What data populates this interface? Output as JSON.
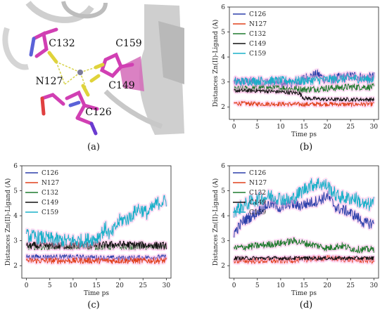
{
  "colors": {
    "C126": "#2b3faa",
    "N127": "#e0401c",
    "C132": "#1f7a2e",
    "C149": "#111111",
    "C159": "#1ab0c8",
    "glow": "#ffb8e8"
  },
  "molecule": {
    "panel_label": "(a)",
    "labels": [
      "C132",
      "C159",
      "N127",
      "C149",
      "C126"
    ]
  },
  "chart_data": [
    {
      "type": "line",
      "panel_label": "(b)",
      "xlabel": "Time ps",
      "ylabel": "Distances Zn(II)-Ligand (A)",
      "xlim": [
        -1,
        31
      ],
      "ylim": [
        1.5,
        6
      ],
      "xticks": [
        "0",
        "5",
        "10",
        "15",
        "20",
        "25",
        "30"
      ],
      "yticks": [
        "2",
        "3",
        "4",
        "5",
        "6"
      ],
      "legend": [
        "C126",
        "N127",
        "C132",
        "C149",
        "C159"
      ],
      "legend_position": "top-left",
      "x": [
        0,
        30
      ],
      "series": [
        {
          "name": "C126",
          "values": [
            [
              0,
              3.0
            ],
            [
              3,
              3.0
            ],
            [
              6,
              3.0
            ],
            [
              9,
              2.95
            ],
            [
              12,
              2.95
            ],
            [
              14,
              2.95
            ],
            [
              15,
              3.15
            ],
            [
              16,
              3.2
            ],
            [
              18,
              3.3
            ],
            [
              20,
              3.05
            ],
            [
              22,
              3.15
            ],
            [
              24,
              3.2
            ],
            [
              26,
              3.25
            ],
            [
              28,
              3.15
            ],
            [
              30,
              3.2
            ]
          ]
        },
        {
          "name": "N127",
          "values": [
            [
              0,
              2.15
            ],
            [
              5,
              2.12
            ],
            [
              10,
              2.12
            ],
            [
              15,
              2.1
            ],
            [
              20,
              2.12
            ],
            [
              25,
              2.1
            ],
            [
              30,
              2.12
            ]
          ]
        },
        {
          "name": "C132",
          "values": [
            [
              0,
              2.7
            ],
            [
              5,
              2.75
            ],
            [
              10,
              2.75
            ],
            [
              15,
              2.7
            ],
            [
              20,
              2.75
            ],
            [
              25,
              2.8
            ],
            [
              30,
              2.8
            ]
          ]
        },
        {
          "name": "C149",
          "values": [
            [
              0,
              2.65
            ],
            [
              5,
              2.65
            ],
            [
              10,
              2.6
            ],
            [
              14,
              2.55
            ],
            [
              15,
              2.35
            ],
            [
              20,
              2.3
            ],
            [
              25,
              2.3
            ],
            [
              30,
              2.3
            ]
          ]
        },
        {
          "name": "C159",
          "values": [
            [
              0,
              3.0
            ],
            [
              5,
              3.05
            ],
            [
              10,
              3.05
            ],
            [
              15,
              3.05
            ],
            [
              20,
              3.1
            ],
            [
              25,
              3.15
            ],
            [
              30,
              3.1
            ]
          ]
        }
      ],
      "noise": [
        0.2,
        0.09,
        0.14,
        0.08,
        0.18
      ]
    },
    {
      "type": "line",
      "panel_label": "(c)",
      "xlabel": "Time ps",
      "ylabel": "Distances Zn(II)-Ligand (A)",
      "xlim": [
        -1,
        31
      ],
      "ylim": [
        1.5,
        6
      ],
      "xticks": [
        "0",
        "5",
        "10",
        "15",
        "20",
        "25",
        "30"
      ],
      "yticks": [
        "2",
        "3",
        "4",
        "5",
        "6"
      ],
      "legend": [
        "C126",
        "N127",
        "C132",
        "C149",
        "C159"
      ],
      "legend_position": "top-left",
      "x": [
        0,
        30
      ],
      "series": [
        {
          "name": "C126",
          "values": [
            [
              0,
              2.35
            ],
            [
              10,
              2.35
            ],
            [
              20,
              2.3
            ],
            [
              30,
              2.35
            ]
          ]
        },
        {
          "name": "N127",
          "values": [
            [
              0,
              2.2
            ],
            [
              10,
              2.2
            ],
            [
              20,
              2.2
            ],
            [
              30,
              2.2
            ]
          ]
        },
        {
          "name": "C132",
          "values": [
            [
              0,
              2.75
            ],
            [
              10,
              2.75
            ],
            [
              20,
              2.75
            ],
            [
              30,
              2.75
            ]
          ]
        },
        {
          "name": "C149",
          "values": [
            [
              0,
              2.8
            ],
            [
              10,
              2.8
            ],
            [
              20,
              2.85
            ],
            [
              30,
              2.8
            ]
          ]
        },
        {
          "name": "C159",
          "values": [
            [
              0,
              3.2
            ],
            [
              4,
              3.1
            ],
            [
              8,
              3.0
            ],
            [
              12,
              3.0
            ],
            [
              15,
              3.1
            ],
            [
              17,
              3.5
            ],
            [
              18,
              3.2
            ],
            [
              20,
              3.8
            ],
            [
              22,
              3.9
            ],
            [
              24,
              4.3
            ],
            [
              26,
              4.1
            ],
            [
              28,
              4.5
            ],
            [
              30,
              4.6
            ]
          ]
        }
      ],
      "noise": [
        0.1,
        0.12,
        0.12,
        0.15,
        0.28
      ]
    },
    {
      "type": "line",
      "panel_label": "(d)",
      "xlabel": "Time ps",
      "ylabel": "Distances Zn(II)-Ligand (A)",
      "xlim": [
        -1,
        31
      ],
      "ylim": [
        1.5,
        6
      ],
      "xticks": [
        "0",
        "5",
        "10",
        "15",
        "20",
        "25",
        "30"
      ],
      "yticks": [
        "2",
        "3",
        "4",
        "5",
        "6"
      ],
      "legend": [
        "C126",
        "N127",
        "C132",
        "C149",
        "C159"
      ],
      "legend_position": "top-left",
      "x": [
        0,
        30
      ],
      "series": [
        {
          "name": "C126",
          "values": [
            [
              0,
              3.3
            ],
            [
              2,
              3.8
            ],
            [
              4,
              4.0
            ],
            [
              6,
              4.3
            ],
            [
              8,
              4.5
            ],
            [
              10,
              4.3
            ],
            [
              12,
              4.5
            ],
            [
              14,
              4.4
            ],
            [
              16,
              4.5
            ],
            [
              18,
              4.6
            ],
            [
              20,
              4.8
            ],
            [
              22,
              4.3
            ],
            [
              24,
              4.2
            ],
            [
              26,
              4.0
            ],
            [
              28,
              3.7
            ],
            [
              30,
              3.7
            ]
          ]
        },
        {
          "name": "N127",
          "values": [
            [
              0,
              2.2
            ],
            [
              10,
              2.2
            ],
            [
              20,
              2.3
            ],
            [
              30,
              2.2
            ]
          ]
        },
        {
          "name": "C132",
          "values": [
            [
              0,
              2.7
            ],
            [
              5,
              2.8
            ],
            [
              10,
              2.9
            ],
            [
              13,
              3.0
            ],
            [
              15,
              2.9
            ],
            [
              18,
              2.8
            ],
            [
              20,
              2.7
            ],
            [
              23,
              2.8
            ],
            [
              26,
              2.65
            ],
            [
              30,
              2.65
            ]
          ]
        },
        {
          "name": "C149",
          "values": [
            [
              0,
              2.3
            ],
            [
              10,
              2.3
            ],
            [
              20,
              2.3
            ],
            [
              30,
              2.3
            ]
          ]
        },
        {
          "name": "C159",
          "values": [
            [
              0,
              4.2
            ],
            [
              2,
              4.4
            ],
            [
              4,
              4.6
            ],
            [
              6,
              4.7
            ],
            [
              8,
              4.8
            ],
            [
              10,
              4.7
            ],
            [
              12,
              4.6
            ],
            [
              14,
              4.9
            ],
            [
              16,
              5.2
            ],
            [
              18,
              5.3
            ],
            [
              20,
              5.2
            ],
            [
              22,
              4.8
            ],
            [
              24,
              4.7
            ],
            [
              26,
              4.7
            ],
            [
              28,
              4.4
            ],
            [
              30,
              4.5
            ]
          ]
        }
      ],
      "noise": [
        0.22,
        0.12,
        0.14,
        0.08,
        0.28
      ]
    }
  ]
}
